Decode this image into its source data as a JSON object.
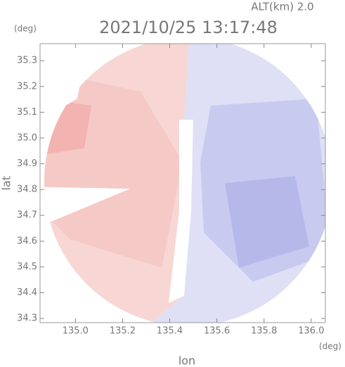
{
  "chart_data": {
    "type": "radar-map",
    "title": "2021/10/25 13:17:48",
    "altitude_label": "ALT(km) 2.0",
    "x_label": "lon",
    "y_label": "lat",
    "x_unit": "(deg)",
    "y_unit": "(deg)",
    "xlim": [
      134.85,
      136.06
    ],
    "ylim": [
      34.284,
      35.366
    ],
    "xticks": [
      {
        "value": 135.0,
        "label": "135.0"
      },
      135.2,
      135.4,
      135.6,
      135.8,
      {
        "value": 136.0,
        "label": "136.0"
      }
    ],
    "yticks": [
      35.3,
      35.2,
      35.1,
      {
        "value": 35.0,
        "label": "35.0"
      },
      34.9,
      34.8,
      34.7,
      34.6,
      34.5,
      34.4,
      34.3
    ]
  }
}
